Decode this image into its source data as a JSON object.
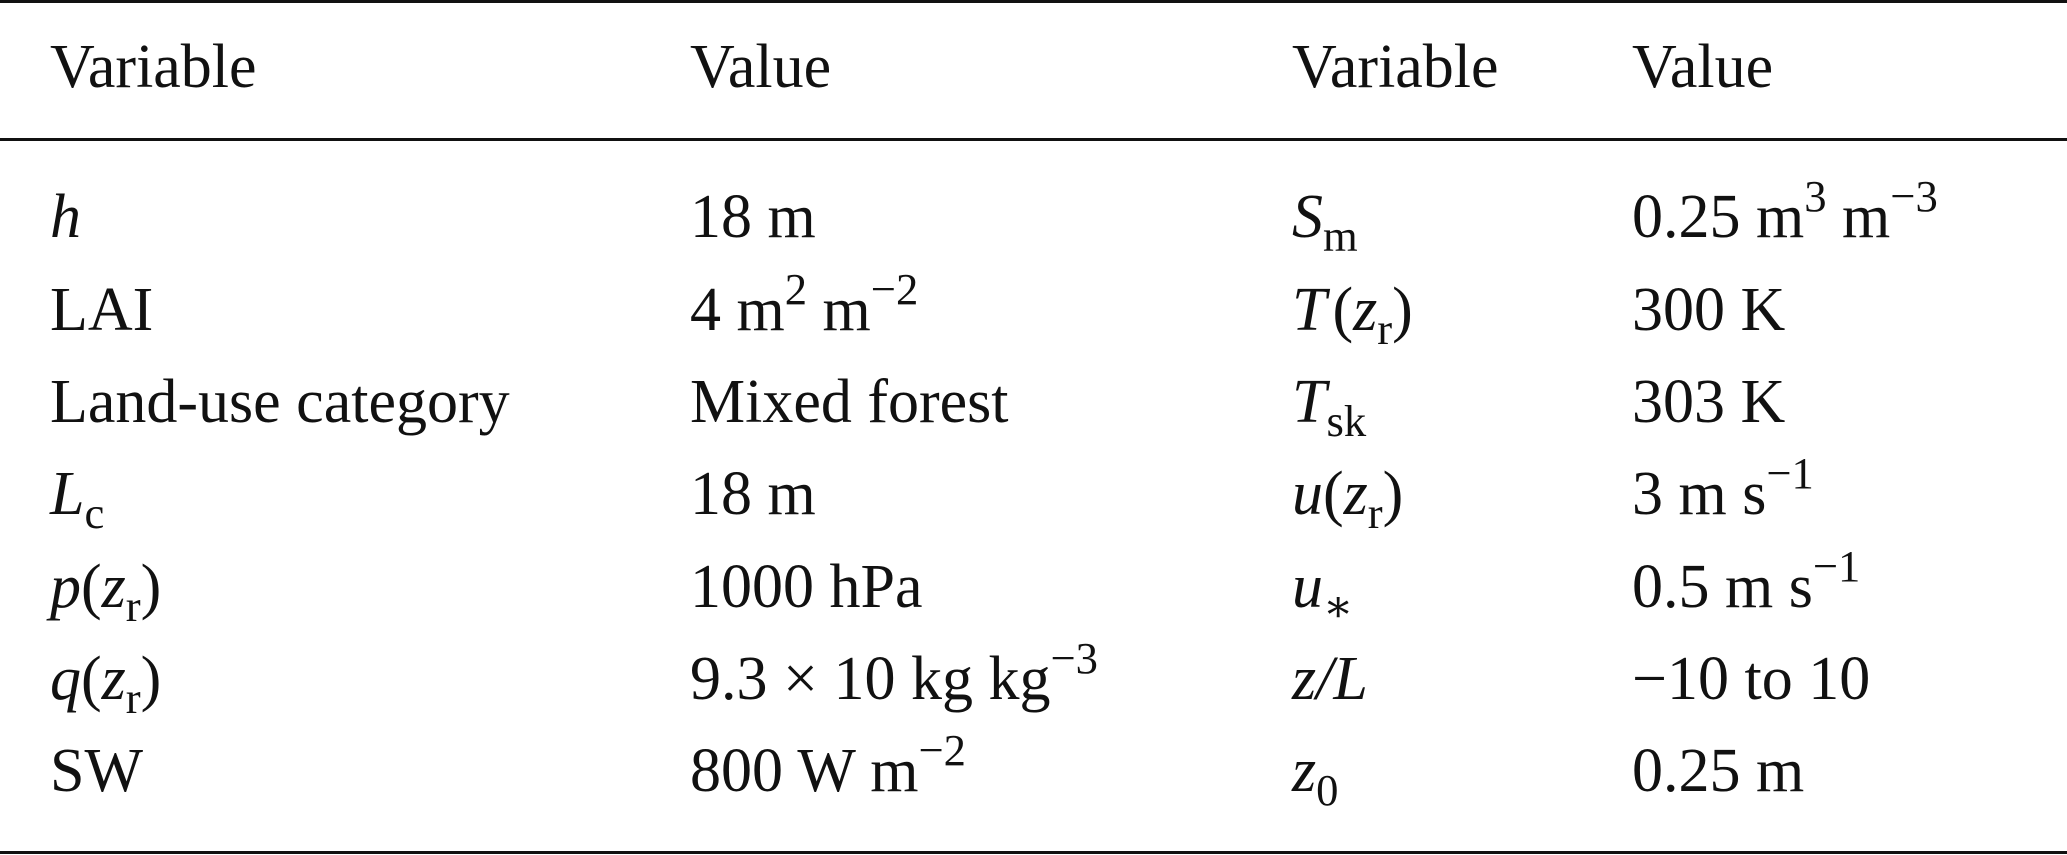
{
  "table": {
    "headers": [
      "Variable",
      "Value",
      "Variable",
      "Value"
    ],
    "rows": [
      {
        "left_var": {
          "main": "h",
          "sub": ""
        },
        "left_val": {
          "text": "18 m",
          "sup": "",
          "tail": ""
        },
        "right_var": {
          "main": "S",
          "sub": "m",
          "paren": ""
        },
        "right_val": {
          "a": "0.25 m",
          "sup1": "3",
          "b": " m",
          "sup2": "−3"
        }
      },
      {
        "left_var": {
          "main": "LAI",
          "sub": ""
        },
        "left_val": {
          "a": "4 m",
          "sup1": "2",
          "b": " m",
          "sup2": "−2"
        },
        "right_var": {
          "main": "T",
          "arg": "z",
          "arg_sub": "r"
        },
        "right_val": {
          "text": "300 K"
        }
      },
      {
        "left_var": {
          "main": "Land-use category"
        },
        "left_val": {
          "text": "Mixed forest"
        },
        "right_var": {
          "main": "T",
          "sub": "sk"
        },
        "right_val": {
          "text": "303 K"
        }
      },
      {
        "left_var": {
          "main": "L",
          "sub": "c"
        },
        "left_val": {
          "text": "18 m"
        },
        "right_var": {
          "main": "u",
          "arg": "z",
          "arg_sub": "r"
        },
        "right_val": {
          "a": "3 m s",
          "sup": "−1"
        }
      },
      {
        "left_var": {
          "main": "p",
          "arg": "z",
          "arg_sub": "r"
        },
        "left_val": {
          "text": "1000 hPa"
        },
        "right_var": {
          "main": "u",
          "sub": "∗"
        },
        "right_val": {
          "a": "0.5 m s",
          "sup": "−1"
        }
      },
      {
        "left_var": {
          "main": "q",
          "arg": "z",
          "arg_sub": "r"
        },
        "left_val": {
          "a": "9.3 × 10 kg kg",
          "sup": "−3"
        },
        "right_var": {
          "main": "z/L"
        },
        "right_val": {
          "text": "−10 to 10"
        }
      },
      {
        "left_var": {
          "main": "SW"
        },
        "left_val": {
          "a": "800 W m",
          "sup": "−2"
        },
        "right_var": {
          "main": "z",
          "sub": "0"
        },
        "right_val": {
          "text": "0.25 m"
        }
      }
    ]
  }
}
